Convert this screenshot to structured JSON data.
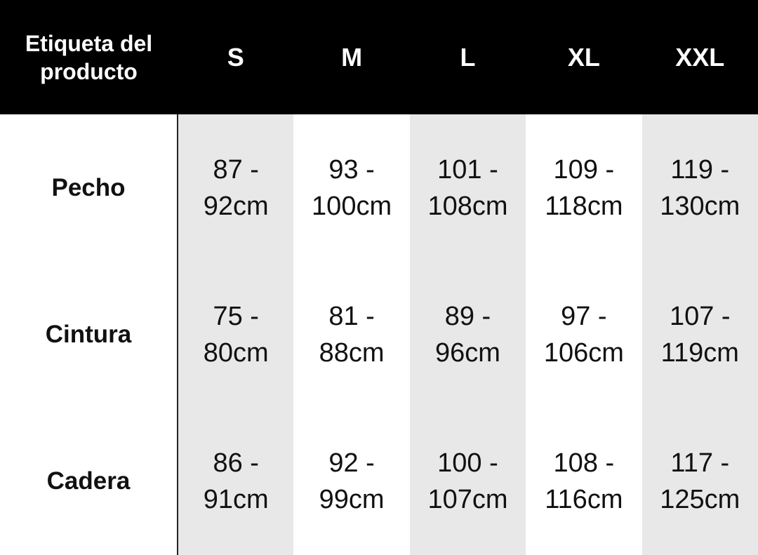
{
  "table": {
    "header": [
      "Etiqueta del producto",
      "S",
      "M",
      "L",
      "XL",
      "XXL"
    ],
    "rows": [
      [
        "Pecho",
        "87 - 92cm",
        "93 - 100cm",
        "101 - 108cm",
        "109 - 118cm",
        "119 - 130cm"
      ],
      [
        "Cintura",
        "75 - 80cm",
        "81 - 88cm",
        "89 - 96cm",
        "97 - 106cm",
        "107 - 119cm"
      ],
      [
        "Cadera",
        "86 - 91cm",
        "92 - 99cm",
        "100 - 107cm",
        "108 - 116cm",
        "117 - 125cm"
      ]
    ]
  }
}
